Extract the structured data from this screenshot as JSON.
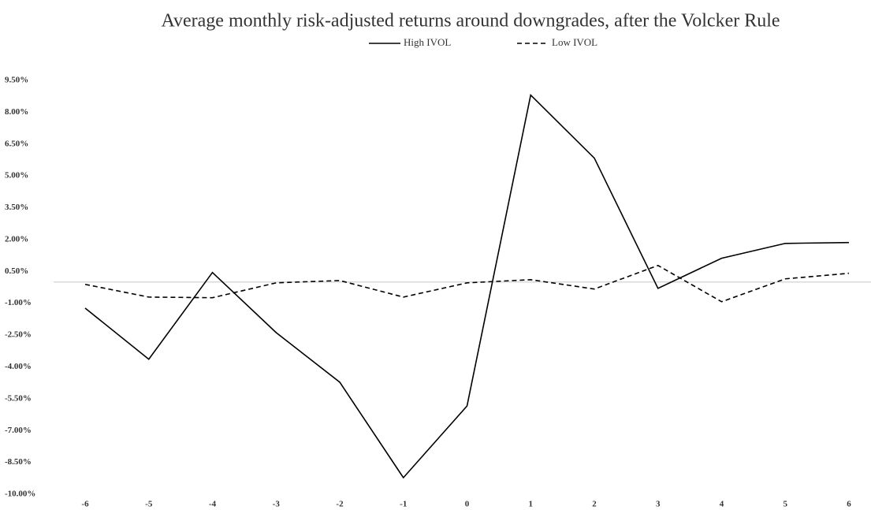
{
  "chart_data": {
    "type": "line",
    "title": "Average monthly risk-adjusted returns around downgrades, after the Volcker Rule",
    "categories": [
      "-6",
      "-5",
      "-4",
      "-3",
      "-2",
      "-1",
      "0",
      "1",
      "2",
      "3",
      "4",
      "5",
      "6"
    ],
    "series": [
      {
        "name": "High IVOL",
        "color": "#000000",
        "style": "solid",
        "values": [
          -1.23,
          -3.64,
          0.45,
          -2.38,
          -4.72,
          -9.22,
          -5.84,
          8.81,
          5.84,
          -0.3,
          1.12,
          1.82,
          1.86
        ]
      },
      {
        "name": "Low IVOL",
        "color": "#000000",
        "style": "dashed",
        "values": [
          -0.11,
          -0.71,
          -0.74,
          -0.04,
          0.07,
          -0.71,
          -0.04,
          0.11,
          -0.33,
          0.78,
          -0.93,
          0.15,
          0.41
        ]
      }
    ],
    "ylim": [
      -10,
      9.5
    ],
    "yticks": [
      {
        "value": 9.5,
        "label": "9.50%"
      },
      {
        "value": 8,
        "label": "8.00%"
      },
      {
        "value": 6.5,
        "label": "6.50%"
      },
      {
        "value": 5,
        "label": "5.00%"
      },
      {
        "value": 3.5,
        "label": "3.50%"
      },
      {
        "value": 2,
        "label": "2.00%"
      },
      {
        "value": 0.5,
        "label": "0.50%"
      },
      {
        "value": -1,
        "label": "-1.00%"
      },
      {
        "value": -2.5,
        "label": "-2.50%"
      },
      {
        "value": -4,
        "label": "-4.00%"
      },
      {
        "value": -5.5,
        "label": "-5.50%"
      },
      {
        "value": -7,
        "label": "-7.00%"
      },
      {
        "value": -8.5,
        "label": "-8.50%"
      },
      {
        "value": -10,
        "label": "-10.00%"
      }
    ],
    "grid": false,
    "legend": "top"
  }
}
